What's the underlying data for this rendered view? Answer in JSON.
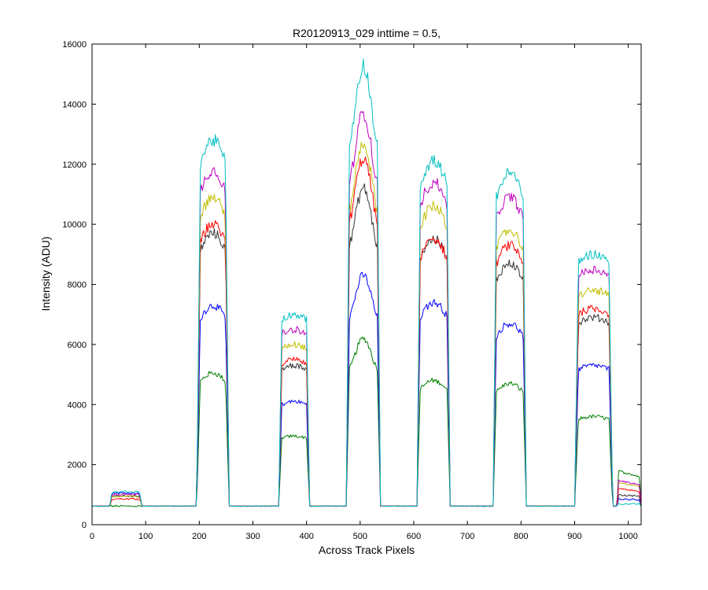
{
  "chart_data": {
    "type": "line",
    "title": "R20120913_029 inttime = 0.5,",
    "xlabel": "Across Track Pixels",
    "ylabel": "Intensity (ADU)",
    "xlim": [
      0,
      1024
    ],
    "ylim": [
      0,
      16000
    ],
    "xticks": [
      0,
      100,
      200,
      300,
      400,
      500,
      600,
      700,
      800,
      900,
      1000
    ],
    "yticks": [
      0,
      2000,
      4000,
      6000,
      8000,
      10000,
      12000,
      14000,
      16000
    ],
    "grid": false,
    "legend": "none",
    "baseline": 620,
    "plateaus": [
      {
        "start": 33,
        "end": 93,
        "shape": "flat",
        "edge": 4
      },
      {
        "start": 195,
        "end": 256,
        "shape": "arc",
        "edge": 7
      },
      {
        "start": 348,
        "end": 406,
        "shape": "flat",
        "edge": 6
      },
      {
        "start": 474,
        "end": 538,
        "shape": "peak",
        "edge": 6
      },
      {
        "start": 606,
        "end": 668,
        "shape": "arc",
        "edge": 6
      },
      {
        "start": 748,
        "end": 810,
        "shape": "arc",
        "edge": 6
      },
      {
        "start": 900,
        "end": 971,
        "shape": "flat",
        "edge": 7
      },
      {
        "start": 979,
        "end": 1024,
        "shape": "tail",
        "edge": 3
      }
    ],
    "series": [
      {
        "color": "#008000",
        "levels": [
          620,
          5050,
          2950,
          6200,
          4800,
          4700,
          3600,
          1800
        ]
      },
      {
        "color": "#0000ff",
        "levels": [
          1060,
          7300,
          4100,
          8300,
          7400,
          6700,
          5300,
          860
        ]
      },
      {
        "color": "#333333",
        "levels": [
          960,
          9700,
          5300,
          11200,
          9500,
          8700,
          6900,
          1000
        ]
      },
      {
        "color": "#ff0000",
        "levels": [
          860,
          10000,
          5500,
          12200,
          9500,
          9300,
          7200,
          1200
        ]
      },
      {
        "color": "#bfbf00",
        "levels": [
          940,
          10900,
          6000,
          12700,
          10600,
          9800,
          7800,
          1400
        ]
      },
      {
        "color": "#bf00bf",
        "levels": [
          1020,
          11800,
          6500,
          13700,
          11400,
          10900,
          8500,
          1480
        ]
      },
      {
        "color": "#00bfbf",
        "levels": [
          1100,
          12800,
          7000,
          15300,
          12100,
          11700,
          9000,
          700
        ]
      }
    ]
  }
}
